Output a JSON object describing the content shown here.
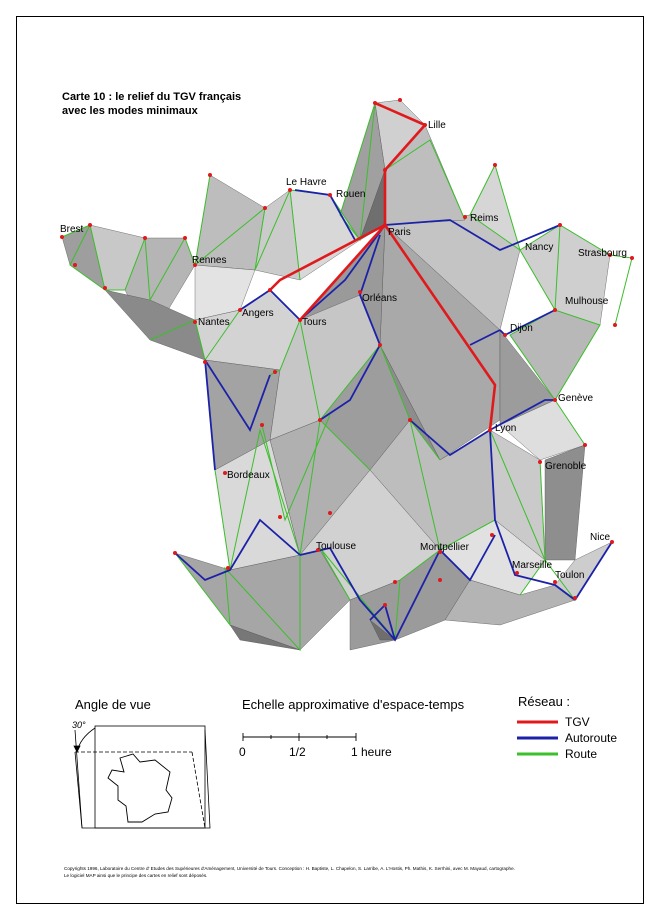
{
  "map": {
    "title_line1": "Carte 10 : le relief du TGV français",
    "title_line2": "avec les modes minimaux",
    "cities": [
      {
        "name": "Lille"
      },
      {
        "name": "Le Havre"
      },
      {
        "name": "Rouen"
      },
      {
        "name": "Reims"
      },
      {
        "name": "Brest"
      },
      {
        "name": "Paris"
      },
      {
        "name": "Nancy"
      },
      {
        "name": "Strasbourg"
      },
      {
        "name": "Rennes"
      },
      {
        "name": "Mulhouse"
      },
      {
        "name": "Orléans"
      },
      {
        "name": "Angers"
      },
      {
        "name": "Nantes"
      },
      {
        "name": "Tours"
      },
      {
        "name": "Dijon"
      },
      {
        "name": "Genève"
      },
      {
        "name": "Lyon"
      },
      {
        "name": "Grenoble"
      },
      {
        "name": "Bordeaux"
      },
      {
        "name": "Nice"
      },
      {
        "name": "Toulouse"
      },
      {
        "name": "Montpellier"
      },
      {
        "name": "Marseille"
      },
      {
        "name": "Toulon"
      }
    ]
  },
  "view_angle": {
    "heading": "Angle de vue",
    "angle_label": "30°"
  },
  "scale": {
    "heading": "Echelle approximative d'espace-temps",
    "ticks": [
      "0",
      "1/2",
      "1 heure"
    ]
  },
  "legend": {
    "heading": "Réseau :",
    "items": [
      {
        "label": "TGV",
        "color": "#e0191c"
      },
      {
        "label": "Autoroute",
        "color": "#1c22a8"
      },
      {
        "label": "Route",
        "color": "#3bbf2a"
      }
    ]
  },
  "copyright": {
    "line1": "Copyrights 1996, Laboratoire du Centre d' Etudes des Supérieures d'Aménagement, Université de Tours. Conception : H. Baptiste, L. Chapelon, S. Larribe, A. L'Hostis, Ph. Mathis, K. Serrhini, avec M. Mayaud, cartographe.",
    "line2": "Le logiciel MAP ainsi que le principe des cartes en relief sont déposés."
  }
}
